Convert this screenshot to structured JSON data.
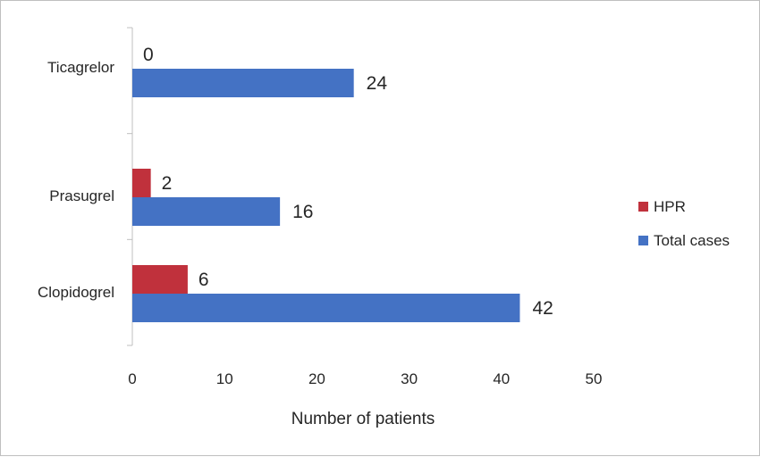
{
  "chart_data": {
    "type": "bar",
    "orientation": "horizontal",
    "categories": [
      "Ticagrelor",
      "Prasugrel",
      "Clopidogrel"
    ],
    "series": [
      {
        "name": "HPR",
        "values": [
          0,
          2,
          6
        ],
        "color": "#c0313c"
      },
      {
        "name": "Total cases",
        "values": [
          24,
          16,
          42
        ],
        "color": "#4472c4"
      }
    ],
    "xlabel": "Number of patients",
    "ylabel": "",
    "xlim": [
      0,
      50
    ],
    "xticks": [
      0,
      10,
      20,
      30,
      40,
      50
    ],
    "xtick_labels": [
      "0",
      "10",
      "20",
      "30",
      "40",
      "50"
    ],
    "data_labels": {
      "HPR": [
        "0",
        "2",
        "6"
      ],
      "Total cases": [
        "24",
        "16",
        "42"
      ]
    },
    "legend": "right",
    "grid": false
  }
}
